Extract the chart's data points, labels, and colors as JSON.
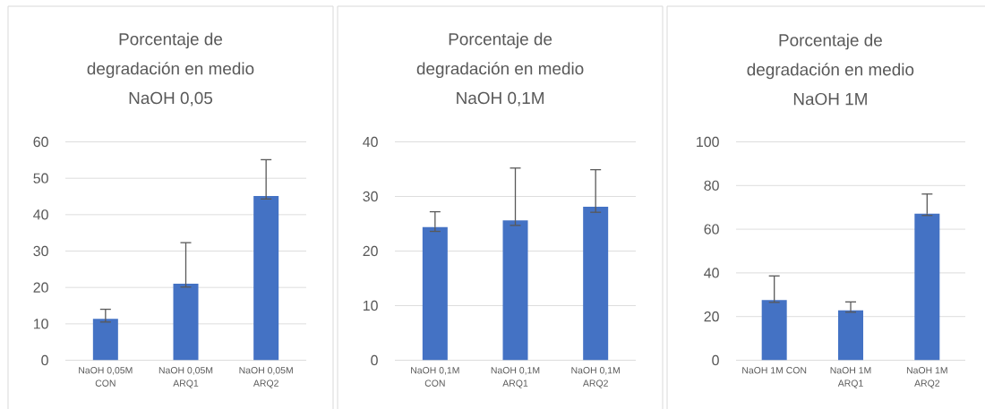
{
  "chart_data": [
    {
      "type": "bar",
      "title": "Porcentaje de degradación en medio NaOH 0,05",
      "categories": [
        "NaOH 0,05M CON",
        "NaOH 0,05M ARQ1",
        "NaOH 0,05M ARQ2"
      ],
      "values": [
        11.4,
        21.0,
        45.1
      ],
      "errors": [
        [
          10.5,
          14.0
        ],
        [
          20.1,
          32.3
        ],
        [
          44.3,
          55.1
        ]
      ],
      "color": "#4472c4",
      "ylim": [
        0,
        60
      ],
      "yticks": [
        0,
        10,
        20,
        30,
        40,
        50,
        60
      ],
      "grid": "y"
    },
    {
      "type": "bar",
      "title": "Porcentaje de degradación en medio NaOH 0,1M",
      "categories": [
        "NaOH 0,1M CON",
        "NaOH 0,1M ARQ1",
        "NaOH 0,1M ARQ2"
      ],
      "values": [
        24.4,
        25.6,
        28.1
      ],
      "errors": [
        [
          23.6,
          27.2
        ],
        [
          24.7,
          35.2
        ],
        [
          27.1,
          34.9
        ]
      ],
      "color": "#4472c4",
      "ylim": [
        0,
        40
      ],
      "yticks": [
        0,
        10,
        20,
        30,
        40
      ],
      "grid": "y"
    },
    {
      "type": "bar",
      "title": "Porcentaje de degradación en medio NaOH 1M",
      "categories": [
        "NaOH 1M CON",
        "NaOH 1M ARQ1",
        "NaOH 1M ARQ2"
      ],
      "values": [
        27.6,
        22.8,
        67.1
      ],
      "errors": [
        [
          26.5,
          38.6
        ],
        [
          22.0,
          26.7
        ],
        [
          66.3,
          76.1
        ]
      ],
      "color": "#4472c4",
      "ylim": [
        0,
        100
      ],
      "yticks": [
        0,
        20,
        40,
        60,
        80,
        100
      ],
      "grid": "y"
    }
  ]
}
